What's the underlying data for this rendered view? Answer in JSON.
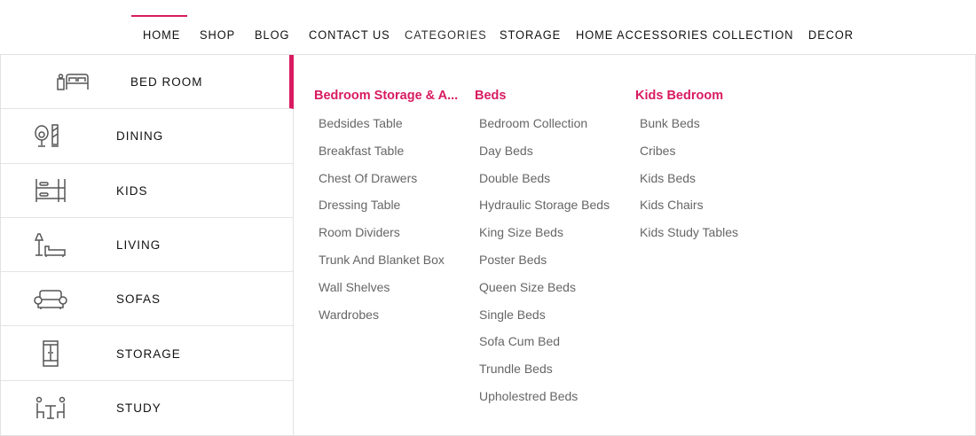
{
  "accent_color": "#d81b60",
  "nav": {
    "active": "HOME",
    "items": [
      "HOME",
      "SHOP",
      "BLOG",
      "CONTACT US",
      "CATEGORIES",
      "STORAGE",
      "HOME ACCESSORIES",
      "COLLECTION",
      "DECOR"
    ]
  },
  "sidebar": {
    "active": "BED ROOM",
    "items": [
      {
        "label": "BED ROOM",
        "icon": "bed-icon"
      },
      {
        "label": "DINING",
        "icon": "dining-chair-icon"
      },
      {
        "label": "KIDS",
        "icon": "bunk-bed-icon"
      },
      {
        "label": "LIVING",
        "icon": "lamp-chaise-icon"
      },
      {
        "label": "SOFAS",
        "icon": "sofa-icon"
      },
      {
        "label": "STORAGE",
        "icon": "wardrobe-icon"
      },
      {
        "label": "STUDY",
        "icon": "study-table-icon"
      }
    ]
  },
  "columns": [
    {
      "title": "Bedroom Storage & A...",
      "links": [
        "Bedsides Table",
        "Breakfast Table",
        "Chest Of Drawers",
        "Dressing Table",
        "Room Dividers",
        "Trunk And Blanket Box",
        "Wall Shelves",
        "Wardrobes"
      ]
    },
    {
      "title": "Beds",
      "links": [
        "Bedroom Collection",
        "Day Beds",
        "Double Beds",
        "Hydraulic Storage Beds",
        "King Size Beds",
        "Poster Beds",
        "Queen Size Beds",
        "Single Beds",
        "Sofa Cum Bed",
        "Trundle Beds",
        "Upholestred Beds"
      ]
    },
    {
      "title": "Kids Bedroom",
      "links": [
        "Bunk Beds",
        "Cribes",
        "Kids Beds",
        "Kids Chairs",
        "Kids Study Tables"
      ]
    }
  ]
}
